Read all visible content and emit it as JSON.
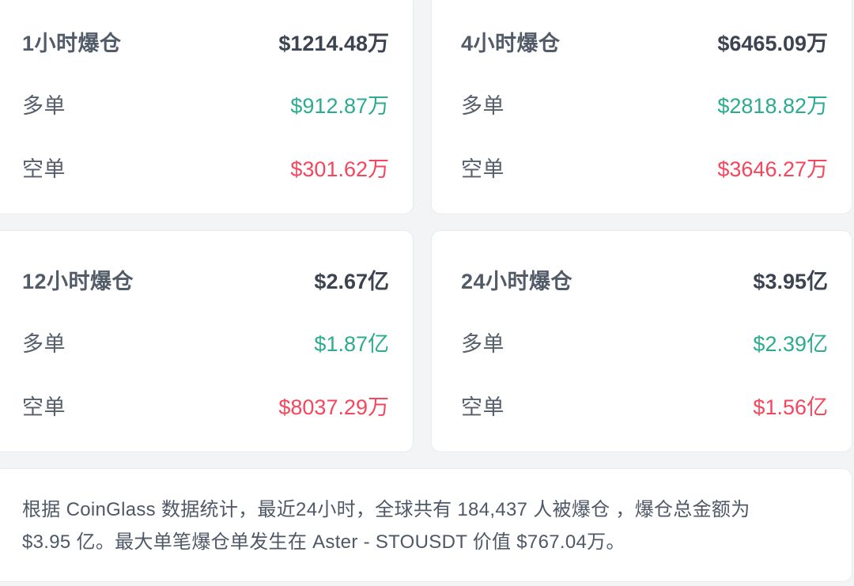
{
  "labels": {
    "long": "多单",
    "short": "空单"
  },
  "cards": [
    {
      "title": "1小时爆仓",
      "total": "$1214.48万",
      "long_value": "$912.87万",
      "short_value": "$301.62万"
    },
    {
      "title": "4小时爆仓",
      "total": "$6465.09万",
      "long_value": "$2818.82万",
      "short_value": "$3646.27万"
    },
    {
      "title": "12小时爆仓",
      "total": "$2.67亿",
      "long_value": "$1.87亿",
      "short_value": "$8037.29万"
    },
    {
      "title": "24小时爆仓",
      "total": "$3.95亿",
      "long_value": "$2.39亿",
      "short_value": "$1.56亿"
    }
  ],
  "summary": {
    "line1": "根据 CoinGlass 数据统计，最近24小时，全球共有 184,437 人被爆仓 ，爆仓总金额为",
    "line2": "$3.95 亿。最大单笔爆仓单发生在 Aster - STOUSDT 价值 $767.04万。"
  },
  "colors": {
    "long_green": "#2cab90",
    "short_red": "#f5465d",
    "label_gray": "#565f6c",
    "total_dark": "#3c4451",
    "background": "#f3f4f6",
    "card_background": "#ffffff",
    "card_border": "#e9eaec"
  }
}
